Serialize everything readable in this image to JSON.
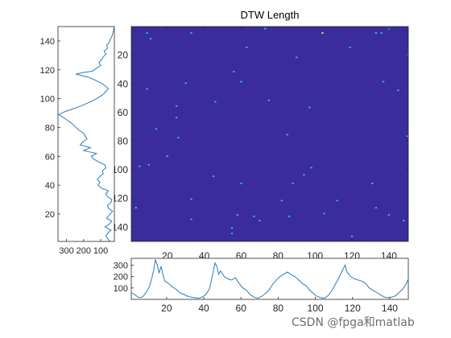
{
  "watermark": "CSDN @fpga和matlab",
  "colors": {
    "heatmap_background": "#3a2c9c",
    "heatmap_point": "#2cc3d6",
    "heatmap_peak": "#f5f02a",
    "line": "#2a7bbd",
    "axis": "#262626"
  },
  "chart_data": [
    {
      "type": "heatmap",
      "title": "DTW Length",
      "xlim": [
        1,
        150
      ],
      "ylim": [
        1,
        150
      ],
      "y_reversed": true,
      "xticks": [
        20,
        40,
        60,
        80,
        100,
        120,
        140
      ],
      "yticks": [
        20,
        40,
        60,
        80,
        100,
        120,
        140
      ],
      "background_value": "low",
      "points": [
        {
          "x": 9,
          "y": 5
        },
        {
          "x": 11,
          "y": 9
        },
        {
          "x": 33,
          "y": 5
        },
        {
          "x": 73,
          "y": 2
        },
        {
          "x": 104,
          "y": 5,
          "level": "max"
        },
        {
          "x": 63,
          "y": 15
        },
        {
          "x": 90,
          "y": 22
        },
        {
          "x": 119,
          "y": 15
        },
        {
          "x": 133,
          "y": 5
        },
        {
          "x": 136,
          "y": 5
        },
        {
          "x": 140,
          "y": 2
        },
        {
          "x": 150,
          "y": 20
        },
        {
          "x": 56,
          "y": 32
        },
        {
          "x": 60,
          "y": 39
        },
        {
          "x": 30,
          "y": 40
        },
        {
          "x": 137,
          "y": 39
        },
        {
          "x": 145,
          "y": 45
        },
        {
          "x": 9,
          "y": 44
        },
        {
          "x": 25,
          "y": 56
        },
        {
          "x": 46,
          "y": 53
        },
        {
          "x": 75,
          "y": 52
        },
        {
          "x": 97,
          "y": 57
        },
        {
          "x": 25,
          "y": 64
        },
        {
          "x": 14,
          "y": 72
        },
        {
          "x": 85,
          "y": 76
        },
        {
          "x": 26,
          "y": 78
        },
        {
          "x": 150,
          "y": 77
        },
        {
          "x": 20,
          "y": 91
        },
        {
          "x": 5,
          "y": 98
        },
        {
          "x": 10,
          "y": 97
        },
        {
          "x": 98,
          "y": 99
        },
        {
          "x": 45,
          "y": 105
        },
        {
          "x": 94,
          "y": 104
        },
        {
          "x": 88,
          "y": 110
        },
        {
          "x": 60,
          "y": 110
        },
        {
          "x": 131,
          "y": 110
        },
        {
          "x": 33,
          "y": 121
        },
        {
          "x": 82,
          "y": 122
        },
        {
          "x": 112,
          "y": 122
        },
        {
          "x": 3,
          "y": 127
        },
        {
          "x": 58,
          "y": 132
        },
        {
          "x": 67,
          "y": 133
        },
        {
          "x": 86,
          "y": 133
        },
        {
          "x": 3,
          "y": 127
        },
        {
          "x": 70,
          "y": 136
        },
        {
          "x": 33,
          "y": 135
        },
        {
          "x": 105,
          "y": 131
        },
        {
          "x": 140,
          "y": 132
        },
        {
          "x": 148,
          "y": 136
        },
        {
          "x": 55,
          "y": 141
        },
        {
          "x": 55,
          "y": 145
        },
        {
          "x": 120,
          "y": 147
        },
        {
          "x": 133,
          "y": 127
        }
      ]
    },
    {
      "type": "line",
      "orientation": "vertical",
      "x_reversed": true,
      "xlim": [
        20,
        350
      ],
      "ylim": [
        1,
        150
      ],
      "xticks": [
        300,
        200,
        100
      ],
      "yticks": [
        20,
        40,
        60,
        80,
        100,
        120,
        140
      ],
      "points": [
        [
          45,
          1
        ],
        [
          60,
          3
        ],
        [
          70,
          5
        ],
        [
          55,
          7
        ],
        [
          40,
          9
        ],
        [
          75,
          11
        ],
        [
          50,
          13
        ],
        [
          35,
          15
        ],
        [
          65,
          17
        ],
        [
          45,
          20
        ],
        [
          30,
          22
        ],
        [
          55,
          24
        ],
        [
          60,
          26
        ],
        [
          40,
          28
        ],
        [
          35,
          30
        ],
        [
          60,
          32
        ],
        [
          70,
          34
        ],
        [
          55,
          36
        ],
        [
          95,
          38
        ],
        [
          115,
          40
        ],
        [
          105,
          42
        ],
        [
          120,
          44
        ],
        [
          105,
          46
        ],
        [
          85,
          48
        ],
        [
          90,
          50
        ],
        [
          70,
          52
        ],
        [
          75,
          54
        ],
        [
          110,
          56
        ],
        [
          140,
          58
        ],
        [
          155,
          60
        ],
        [
          125,
          62
        ],
        [
          200,
          64
        ],
        [
          160,
          66
        ],
        [
          220,
          68
        ],
        [
          205,
          70
        ],
        [
          180,
          72
        ],
        [
          190,
          74
        ],
        [
          200,
          76
        ],
        [
          225,
          78
        ],
        [
          245,
          80
        ],
        [
          270,
          83
        ],
        [
          295,
          85
        ],
        [
          320,
          87
        ],
        [
          345,
          89
        ],
        [
          310,
          91
        ],
        [
          260,
          93
        ],
        [
          215,
          95
        ],
        [
          175,
          97
        ],
        [
          140,
          99
        ],
        [
          110,
          101
        ],
        [
          85,
          103
        ],
        [
          70,
          105
        ],
        [
          55,
          107
        ],
        [
          75,
          109
        ],
        [
          100,
          111
        ],
        [
          135,
          113
        ],
        [
          175,
          115
        ],
        [
          245,
          117
        ],
        [
          210,
          118
        ],
        [
          150,
          119
        ],
        [
          125,
          121
        ],
        [
          100,
          123
        ],
        [
          110,
          125
        ],
        [
          95,
          127
        ],
        [
          85,
          129
        ],
        [
          70,
          131
        ],
        [
          80,
          133
        ],
        [
          60,
          135
        ],
        [
          65,
          137
        ],
        [
          50,
          139
        ],
        [
          45,
          141
        ],
        [
          35,
          143
        ],
        [
          30,
          145
        ],
        [
          25,
          147
        ],
        [
          20,
          150
        ]
      ]
    },
    {
      "type": "line",
      "xlim": [
        1,
        150
      ],
      "ylim": [
        0,
        360
      ],
      "xticks": [
        20,
        40,
        60,
        80,
        100,
        120,
        140
      ],
      "yticks": [
        100,
        200,
        300
      ],
      "points": [
        [
          1,
          60
        ],
        [
          3,
          40
        ],
        [
          5,
          15
        ],
        [
          7,
          20
        ],
        [
          9,
          60
        ],
        [
          11,
          120
        ],
        [
          13,
          250
        ],
        [
          14,
          350
        ],
        [
          15,
          300
        ],
        [
          16,
          230
        ],
        [
          17,
          290
        ],
        [
          18,
          220
        ],
        [
          19,
          160
        ],
        [
          21,
          140
        ],
        [
          23,
          110
        ],
        [
          25,
          90
        ],
        [
          27,
          60
        ],
        [
          29,
          45
        ],
        [
          31,
          30
        ],
        [
          33,
          20
        ],
        [
          35,
          15
        ],
        [
          37,
          10
        ],
        [
          39,
          20
        ],
        [
          41,
          40
        ],
        [
          43,
          90
        ],
        [
          44,
          160
        ],
        [
          45,
          240
        ],
        [
          46,
          320
        ],
        [
          47,
          290
        ],
        [
          48,
          220
        ],
        [
          49,
          250
        ],
        [
          51,
          200
        ],
        [
          53,
          180
        ],
        [
          55,
          170
        ],
        [
          57,
          190
        ],
        [
          59,
          140
        ],
        [
          61,
          100
        ],
        [
          63,
          80
        ],
        [
          65,
          40
        ],
        [
          67,
          20
        ],
        [
          69,
          10
        ],
        [
          71,
          25
        ],
        [
          73,
          50
        ],
        [
          75,
          80
        ],
        [
          77,
          130
        ],
        [
          79,
          170
        ],
        [
          81,
          200
        ],
        [
          83,
          220
        ],
        [
          85,
          240
        ],
        [
          87,
          215
        ],
        [
          89,
          200
        ],
        [
          91,
          170
        ],
        [
          93,
          140
        ],
        [
          95,
          120
        ],
        [
          97,
          80
        ],
        [
          99,
          50
        ],
        [
          101,
          25
        ],
        [
          103,
          15
        ],
        [
          105,
          10
        ],
        [
          107,
          35
        ],
        [
          109,
          80
        ],
        [
          111,
          140
        ],
        [
          113,
          200
        ],
        [
          115,
          270
        ],
        [
          116,
          300
        ],
        [
          117,
          240
        ],
        [
          119,
          200
        ],
        [
          121,
          180
        ],
        [
          123,
          170
        ],
        [
          125,
          160
        ],
        [
          127,
          140
        ],
        [
          129,
          100
        ],
        [
          131,
          80
        ],
        [
          133,
          60
        ],
        [
          135,
          40
        ],
        [
          137,
          20
        ],
        [
          139,
          15
        ],
        [
          141,
          20
        ],
        [
          143,
          30
        ],
        [
          145,
          60
        ],
        [
          147,
          90
        ],
        [
          149,
          140
        ],
        [
          150,
          180
        ]
      ]
    }
  ]
}
